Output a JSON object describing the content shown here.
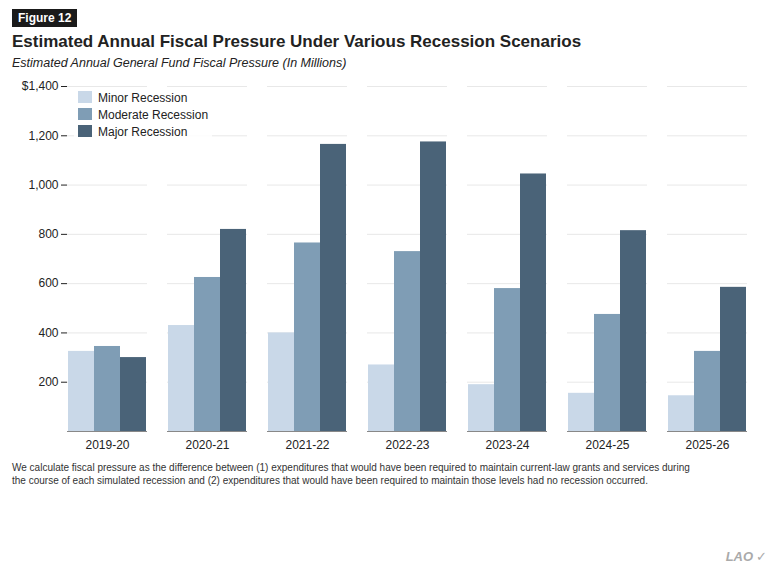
{
  "chart_data": {
    "type": "bar",
    "figure_label": "Figure 12",
    "title": "Estimated Annual Fiscal Pressure Under Various Recession Scenarios",
    "subtitle": "Estimated Annual General Fund Fiscal Pressure (In Millions)",
    "categories": [
      "2019-20",
      "2020-21",
      "2021-22",
      "2022-23",
      "2023-24",
      "2024-25",
      "2025-26"
    ],
    "series": [
      {
        "name": "Minor Recession",
        "color": "#c9d8e8",
        "values": [
          325,
          430,
          400,
          270,
          190,
          155,
          145
        ]
      },
      {
        "name": "Moderate Recession",
        "color": "#7f9db5",
        "values": [
          345,
          625,
          765,
          730,
          580,
          475,
          325
        ]
      },
      {
        "name": "Major Recession",
        "color": "#4a6378",
        "values": [
          300,
          820,
          1165,
          1175,
          1045,
          815,
          585
        ]
      }
    ],
    "ylim": [
      0,
      1400
    ],
    "yticks": [
      200,
      400,
      600,
      800,
      {
        "value": 1000,
        "label": "1,000"
      },
      {
        "value": 1200,
        "label": "1,200"
      },
      {
        "value": 1400,
        "label": "$1,400"
      }
    ],
    "grid": true,
    "legend": "upper left",
    "footnote": [
      "We calculate fiscal pressure as the difference between (1) expenditures that would have been required to maintain current-law grants and services during",
      "the course of each simulated recession and (2) expenditures that would have been required to maintain those levels had no recession occurred."
    ],
    "annotations": [
      "LAO",
      "✓"
    ]
  }
}
